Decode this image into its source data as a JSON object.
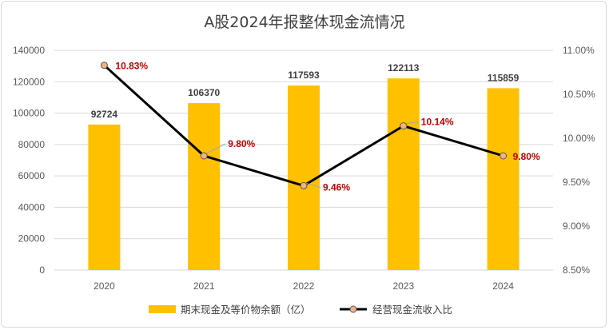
{
  "chart_data": {
    "title": "A股2024年报整体现金流情况",
    "categories": [
      "2020",
      "2021",
      "2022",
      "2023",
      "2024"
    ],
    "series": [
      {
        "name": "期末现金及等价物余额（亿）",
        "type": "bar",
        "axis": "left",
        "color": "#ffc000",
        "values": [
          92724,
          106370,
          117593,
          122113,
          115859
        ],
        "labels": [
          "92724",
          "106370",
          "117593",
          "122113",
          "115859"
        ]
      },
      {
        "name": "经营现金流收入比",
        "type": "line",
        "axis": "right",
        "color": "#000000",
        "marker_color": "#f4b183",
        "values": [
          10.83,
          9.8,
          9.46,
          10.14,
          9.8
        ],
        "labels": [
          "10.83%",
          "9.80%",
          "9.46%",
          "10.14%",
          "9.80%"
        ]
      }
    ],
    "y_left": {
      "ylim": [
        0,
        140000
      ],
      "ticks": [
        0,
        20000,
        40000,
        60000,
        80000,
        100000,
        120000,
        140000
      ],
      "tick_labels": [
        "0",
        "20000",
        "40000",
        "60000",
        "80000",
        "100000",
        "120000",
        "140000"
      ]
    },
    "y_right": {
      "ylim": [
        8.5,
        11.0
      ],
      "ticks": [
        8.5,
        9.0,
        9.5,
        10.0,
        10.5,
        11.0
      ],
      "tick_labels": [
        "8.50%",
        "9.00%",
        "9.50%",
        "10.00%",
        "10.50%",
        "11.00%"
      ]
    },
    "grid": true,
    "legend_position": "bottom"
  }
}
